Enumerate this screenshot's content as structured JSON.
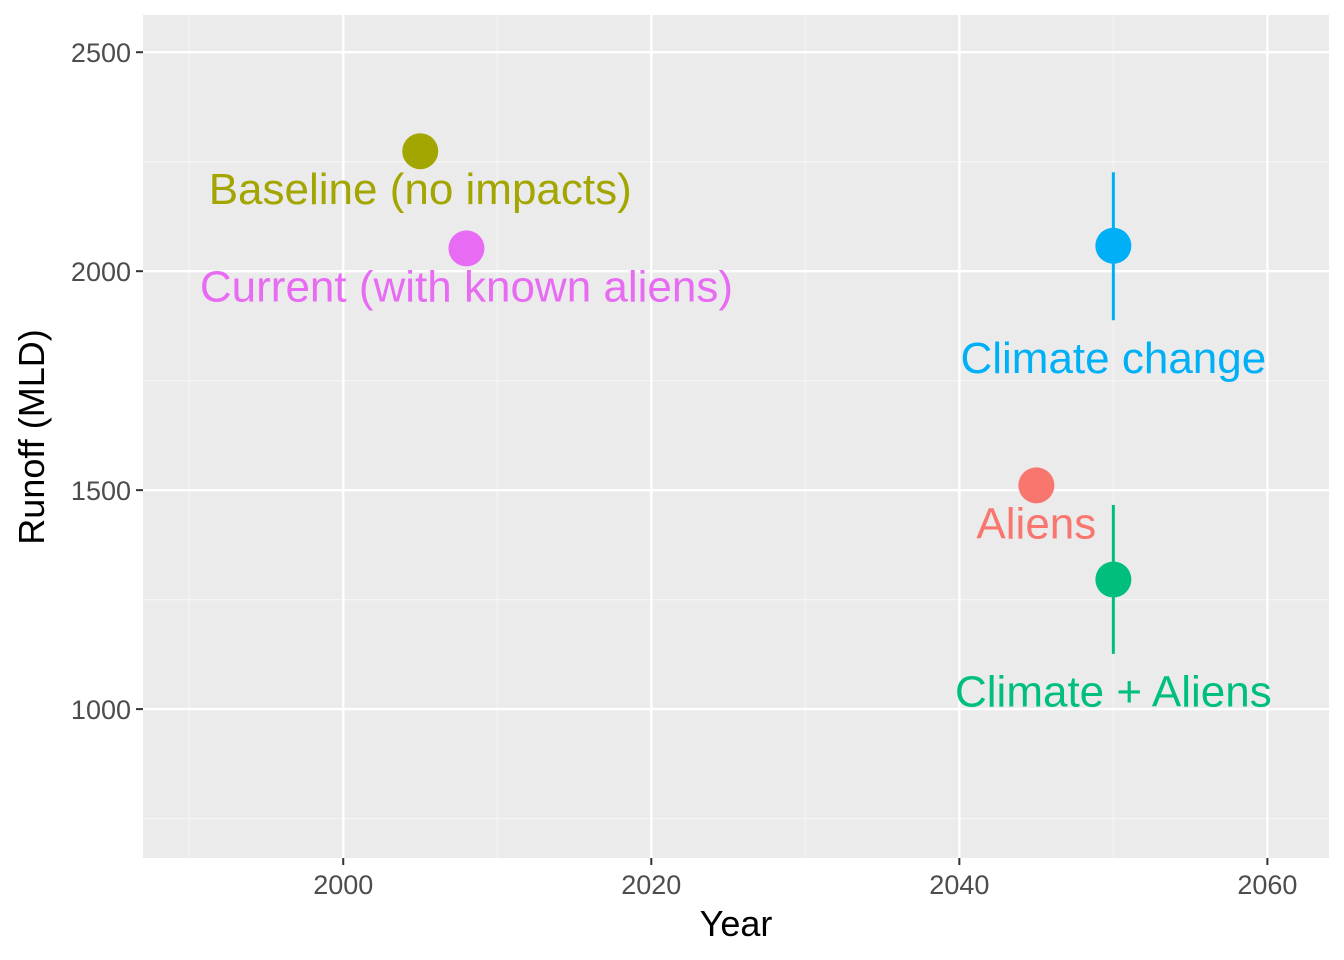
{
  "chart_data": {
    "type": "scatter",
    "title": "",
    "xlabel": "Year",
    "ylabel": "Runoff (MLD)",
    "xlim": [
      1987,
      2064
    ],
    "ylim": [
      660,
      2585
    ],
    "x_ticks": [
      2000,
      2020,
      2040,
      2060
    ],
    "x_tick_labels": [
      "2000",
      "2020",
      "2040",
      "2060"
    ],
    "x_minor": [
      1990,
      2010,
      2030,
      2050
    ],
    "y_ticks": [
      1000,
      1500,
      2000,
      2500
    ],
    "y_tick_labels": [
      "1000",
      "1500",
      "2000",
      "2500"
    ],
    "y_minor": [
      750,
      1250,
      1750,
      2250
    ],
    "grid": true,
    "legend": "none",
    "points": [
      {
        "label": "Baseline (no impacts)",
        "x": 2005,
        "y": 2274,
        "color": "#A3A500",
        "label_pos": "below"
      },
      {
        "label": "Current (with known aliens)",
        "x": 2008,
        "y": 2052,
        "color": "#E76BF3",
        "label_pos": "below"
      },
      {
        "label": "Climate change",
        "x": 2050,
        "y": 2058,
        "ymin": 1888,
        "ymax": 2226,
        "color": "#00B0F6",
        "label_pos": "below-far"
      },
      {
        "label": "Aliens",
        "x": 2045,
        "y": 1511,
        "color": "#F8766D",
        "label_pos": "below"
      },
      {
        "label": "Climate + Aliens",
        "x": 2050,
        "y": 1296,
        "ymin": 1126,
        "ymax": 1466,
        "color": "#00BF7D",
        "label_pos": "below-far"
      }
    ],
    "colors": {
      "panel": "#EBEBEB",
      "grid_major": "#FFFFFF",
      "grid_minor": "#F5F5F5"
    }
  }
}
